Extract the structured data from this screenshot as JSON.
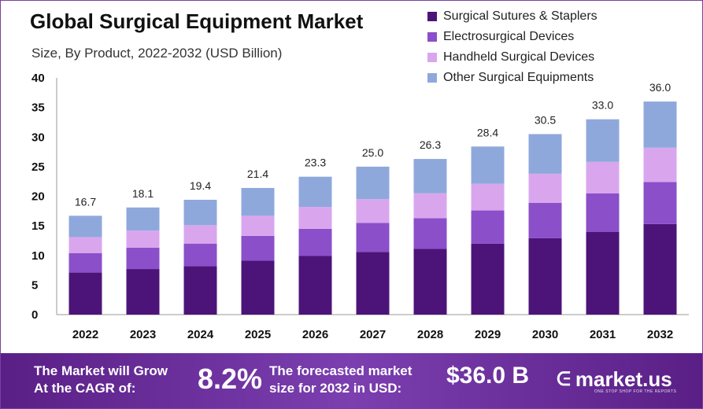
{
  "chart_data": {
    "type": "bar",
    "stacked": true,
    "title": "Global Surgical Equipment Market",
    "subtitle": "Size, By Product, 2022-2032 (USD Billion)",
    "categories": [
      "2022",
      "2023",
      "2024",
      "2025",
      "2026",
      "2027",
      "2028",
      "2029",
      "2030",
      "2031",
      "2032"
    ],
    "totals": [
      16.7,
      18.1,
      19.4,
      21.4,
      23.3,
      25.0,
      26.3,
      28.4,
      30.5,
      33.0,
      36.0
    ],
    "total_labels": [
      "16.7",
      "18.1",
      "19.4",
      "21.4",
      "23.3",
      "25.0",
      "26.3",
      "28.4",
      "30.5",
      "33.0",
      "36.0"
    ],
    "series": [
      {
        "name": "Surgical Sutures & Staplers",
        "color": "#4c1478",
        "values": [
          7.1,
          7.7,
          8.2,
          9.1,
          9.9,
          10.6,
          11.1,
          12.0,
          12.9,
          14.0,
          15.3
        ]
      },
      {
        "name": "Electrosurgical Devices",
        "color": "#8b4fca",
        "values": [
          3.3,
          3.6,
          3.8,
          4.2,
          4.6,
          4.9,
          5.2,
          5.6,
          6.0,
          6.5,
          7.1
        ]
      },
      {
        "name": "Handheld Surgical Devices",
        "color": "#d9a6ee",
        "values": [
          2.7,
          2.9,
          3.1,
          3.4,
          3.7,
          4.0,
          4.2,
          4.5,
          4.9,
          5.3,
          5.8
        ]
      },
      {
        "name": "Other Surgical Equipments",
        "color": "#8fa8dc",
        "values": [
          3.6,
          3.9,
          4.3,
          4.7,
          5.1,
          5.5,
          5.8,
          6.3,
          6.7,
          7.2,
          7.8
        ]
      }
    ],
    "ylim": [
      0,
      40
    ],
    "yticks": [
      0,
      5,
      10,
      15,
      20,
      25,
      30,
      35,
      40
    ],
    "legend_position": "top-right",
    "grid": false
  },
  "footer": {
    "lead_line1": "The Market will Grow",
    "lead_line2": "At the CAGR of:",
    "cagr": "8.2%",
    "forecast_line1": "The forecasted market",
    "forecast_line2": "size for 2032 in USD:",
    "forecast_value": "$36.0 B",
    "brand_name": "market.us",
    "brand_tagline": "ONE STOP SHOP FOR THE REPORTS"
  }
}
